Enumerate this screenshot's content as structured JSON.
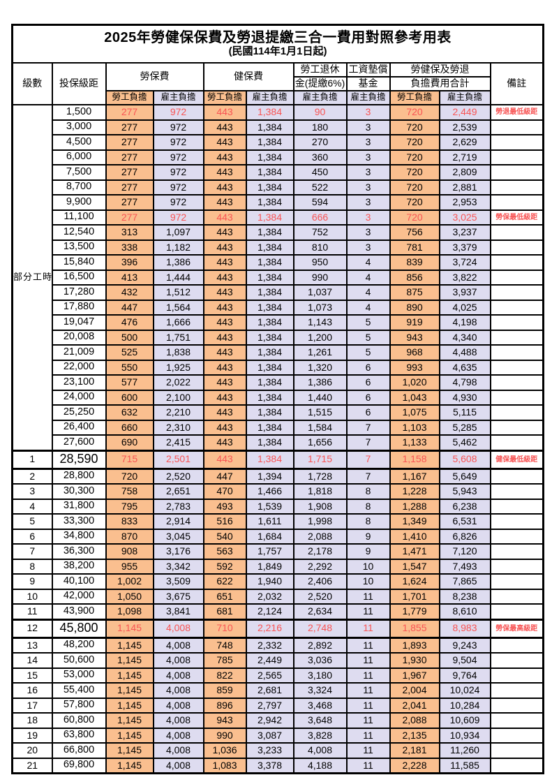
{
  "title": "2025年勞健保保費及勞退提繳三合一費用對照參考用表",
  "subtitle": "(民國114年1月1日起)",
  "header": {
    "level": "級數",
    "salary_bracket": "投保級距",
    "labor_insurance": "勞保費",
    "health_insurance": "健保費",
    "pension_line1": "勞工退休",
    "pension_line2": "金(提繳6%)",
    "wage_fund_line1": "工資墊償",
    "wage_fund_line2": "基金",
    "total_line1": "勞健保及勞退",
    "total_line2": "負擔費用合計",
    "remark": "備註",
    "employee_share": "勞工負擔",
    "employer_share": "雇主負擔"
  },
  "group_label": "部分工時",
  "group_rowspan": 23,
  "colors": {
    "employee_bg": "#FABF8F",
    "employer_bg": "#DEDCF0",
    "highlight_text": "#F85454",
    "border": "#000000"
  },
  "rows": [
    {
      "level": "",
      "salary": "1,500",
      "v": [
        "277",
        "972",
        "443",
        "1,384",
        "90",
        "3",
        "720",
        "2,449"
      ],
      "remark": "勞退最低級距",
      "red": true,
      "thick": false,
      "big": false
    },
    {
      "level": "",
      "salary": "3,000",
      "v": [
        "277",
        "972",
        "443",
        "1,384",
        "180",
        "3",
        "720",
        "2,539"
      ],
      "remark": "",
      "red": false,
      "thick": false,
      "big": false
    },
    {
      "level": "",
      "salary": "4,500",
      "v": [
        "277",
        "972",
        "443",
        "1,384",
        "270",
        "3",
        "720",
        "2,629"
      ],
      "remark": "",
      "red": false,
      "thick": false,
      "big": false
    },
    {
      "level": "",
      "salary": "6,000",
      "v": [
        "277",
        "972",
        "443",
        "1,384",
        "360",
        "3",
        "720",
        "2,719"
      ],
      "remark": "",
      "red": false,
      "thick": false,
      "big": false
    },
    {
      "level": "",
      "salary": "7,500",
      "v": [
        "277",
        "972",
        "443",
        "1,384",
        "450",
        "3",
        "720",
        "2,809"
      ],
      "remark": "",
      "red": false,
      "thick": false,
      "big": false
    },
    {
      "level": "",
      "salary": "8,700",
      "v": [
        "277",
        "972",
        "443",
        "1,384",
        "522",
        "3",
        "720",
        "2,881"
      ],
      "remark": "",
      "red": false,
      "thick": false,
      "big": false
    },
    {
      "level": "",
      "salary": "9,900",
      "v": [
        "277",
        "972",
        "443",
        "1,384",
        "594",
        "3",
        "720",
        "2,953"
      ],
      "remark": "",
      "red": false,
      "thick": false,
      "big": false
    },
    {
      "level": "",
      "salary": "11,100",
      "v": [
        "277",
        "972",
        "443",
        "1,384",
        "666",
        "3",
        "720",
        "3,025"
      ],
      "remark": "勞保最低級距",
      "red": true,
      "thick": false,
      "big": false
    },
    {
      "level": "",
      "salary": "12,540",
      "v": [
        "313",
        "1,097",
        "443",
        "1,384",
        "752",
        "3",
        "756",
        "3,237"
      ],
      "remark": "",
      "red": false,
      "thick": false,
      "big": false
    },
    {
      "level": "",
      "salary": "13,500",
      "v": [
        "338",
        "1,182",
        "443",
        "1,384",
        "810",
        "3",
        "781",
        "3,379"
      ],
      "remark": "",
      "red": false,
      "thick": false,
      "big": false
    },
    {
      "level": "",
      "salary": "15,840",
      "v": [
        "396",
        "1,386",
        "443",
        "1,384",
        "950",
        "4",
        "839",
        "3,724"
      ],
      "remark": "",
      "red": false,
      "thick": false,
      "big": false
    },
    {
      "level": "",
      "salary": "16,500",
      "v": [
        "413",
        "1,444",
        "443",
        "1,384",
        "990",
        "4",
        "856",
        "3,822"
      ],
      "remark": "",
      "red": false,
      "thick": false,
      "big": false
    },
    {
      "level": "",
      "salary": "17,280",
      "v": [
        "432",
        "1,512",
        "443",
        "1,384",
        "1,037",
        "4",
        "875",
        "3,937"
      ],
      "remark": "",
      "red": false,
      "thick": false,
      "big": false
    },
    {
      "level": "",
      "salary": "17,880",
      "v": [
        "447",
        "1,564",
        "443",
        "1,384",
        "1,073",
        "4",
        "890",
        "4,025"
      ],
      "remark": "",
      "red": false,
      "thick": false,
      "big": false
    },
    {
      "level": "",
      "salary": "19,047",
      "v": [
        "476",
        "1,666",
        "443",
        "1,384",
        "1,143",
        "5",
        "919",
        "4,198"
      ],
      "remark": "",
      "red": false,
      "thick": false,
      "big": false
    },
    {
      "level": "",
      "salary": "20,008",
      "v": [
        "500",
        "1,751",
        "443",
        "1,384",
        "1,200",
        "5",
        "943",
        "4,340"
      ],
      "remark": "",
      "red": false,
      "thick": false,
      "big": false
    },
    {
      "level": "",
      "salary": "21,009",
      "v": [
        "525",
        "1,838",
        "443",
        "1,384",
        "1,261",
        "5",
        "968",
        "4,488"
      ],
      "remark": "",
      "red": false,
      "thick": false,
      "big": false
    },
    {
      "level": "",
      "salary": "22,000",
      "v": [
        "550",
        "1,925",
        "443",
        "1,384",
        "1,320",
        "6",
        "993",
        "4,635"
      ],
      "remark": "",
      "red": false,
      "thick": false,
      "big": false
    },
    {
      "level": "",
      "salary": "23,100",
      "v": [
        "577",
        "2,022",
        "443",
        "1,384",
        "1,386",
        "6",
        "1,020",
        "4,798"
      ],
      "remark": "",
      "red": false,
      "thick": false,
      "big": false
    },
    {
      "level": "",
      "salary": "24,000",
      "v": [
        "600",
        "2,100",
        "443",
        "1,384",
        "1,440",
        "6",
        "1,043",
        "4,930"
      ],
      "remark": "",
      "red": false,
      "thick": false,
      "big": false
    },
    {
      "level": "",
      "salary": "25,250",
      "v": [
        "632",
        "2,210",
        "443",
        "1,384",
        "1,515",
        "6",
        "1,075",
        "5,115"
      ],
      "remark": "",
      "red": false,
      "thick": false,
      "big": false
    },
    {
      "level": "",
      "salary": "26,400",
      "v": [
        "660",
        "2,310",
        "443",
        "1,384",
        "1,584",
        "7",
        "1,103",
        "5,285"
      ],
      "remark": "",
      "red": false,
      "thick": false,
      "big": false
    },
    {
      "level": "",
      "salary": "27,600",
      "v": [
        "690",
        "2,415",
        "443",
        "1,384",
        "1,656",
        "7",
        "1,133",
        "5,462"
      ],
      "remark": "",
      "red": false,
      "thick": false,
      "big": false
    },
    {
      "level": "1",
      "salary": "28,590",
      "v": [
        "715",
        "2,501",
        "443",
        "1,384",
        "1,715",
        "7",
        "1,158",
        "5,608"
      ],
      "remark": "健保最低級距",
      "red": true,
      "thick": true,
      "big": true
    },
    {
      "level": "2",
      "salary": "28,800",
      "v": [
        "720",
        "2,520",
        "447",
        "1,394",
        "1,728",
        "7",
        "1,167",
        "5,649"
      ],
      "remark": "",
      "red": false,
      "thick": false,
      "big": false
    },
    {
      "level": "3",
      "salary": "30,300",
      "v": [
        "758",
        "2,651",
        "470",
        "1,466",
        "1,818",
        "8",
        "1,228",
        "5,943"
      ],
      "remark": "",
      "red": false,
      "thick": false,
      "big": false
    },
    {
      "level": "4",
      "salary": "31,800",
      "v": [
        "795",
        "2,783",
        "493",
        "1,539",
        "1,908",
        "8",
        "1,288",
        "6,238"
      ],
      "remark": "",
      "red": false,
      "thick": false,
      "big": false
    },
    {
      "level": "5",
      "salary": "33,300",
      "v": [
        "833",
        "2,914",
        "516",
        "1,611",
        "1,998",
        "8",
        "1,349",
        "6,531"
      ],
      "remark": "",
      "red": false,
      "thick": false,
      "big": false
    },
    {
      "level": "6",
      "salary": "34,800",
      "v": [
        "870",
        "3,045",
        "540",
        "1,684",
        "2,088",
        "9",
        "1,410",
        "6,826"
      ],
      "remark": "",
      "red": false,
      "thick": false,
      "big": false
    },
    {
      "level": "7",
      "salary": "36,300",
      "v": [
        "908",
        "3,176",
        "563",
        "1,757",
        "2,178",
        "9",
        "1,471",
        "7,120"
      ],
      "remark": "",
      "red": false,
      "thick": false,
      "big": false
    },
    {
      "level": "8",
      "salary": "38,200",
      "v": [
        "955",
        "3,342",
        "592",
        "1,849",
        "2,292",
        "10",
        "1,547",
        "7,493"
      ],
      "remark": "",
      "red": false,
      "thick": false,
      "big": false
    },
    {
      "level": "9",
      "salary": "40,100",
      "v": [
        "1,002",
        "3,509",
        "622",
        "1,940",
        "2,406",
        "10",
        "1,624",
        "7,865"
      ],
      "remark": "",
      "red": false,
      "thick": false,
      "big": false
    },
    {
      "level": "10",
      "salary": "42,000",
      "v": [
        "1,050",
        "3,675",
        "651",
        "2,032",
        "2,520",
        "11",
        "1,701",
        "8,238"
      ],
      "remark": "",
      "red": false,
      "thick": false,
      "big": false
    },
    {
      "level": "11",
      "salary": "43,900",
      "v": [
        "1,098",
        "3,841",
        "681",
        "2,124",
        "2,634",
        "11",
        "1,779",
        "8,610"
      ],
      "remark": "",
      "red": false,
      "thick": false,
      "big": false
    },
    {
      "level": "12",
      "salary": "45,800",
      "v": [
        "1,145",
        "4,008",
        "710",
        "2,216",
        "2,748",
        "11",
        "1,855",
        "8,983"
      ],
      "remark": "勞保最高級距",
      "red": true,
      "thick": true,
      "big": true
    },
    {
      "level": "13",
      "salary": "48,200",
      "v": [
        "1,145",
        "4,008",
        "748",
        "2,332",
        "2,892",
        "11",
        "1,893",
        "9,243"
      ],
      "remark": "",
      "red": false,
      "thick": false,
      "big": false
    },
    {
      "level": "14",
      "salary": "50,600",
      "v": [
        "1,145",
        "4,008",
        "785",
        "2,449",
        "3,036",
        "11",
        "1,930",
        "9,504"
      ],
      "remark": "",
      "red": false,
      "thick": false,
      "big": false
    },
    {
      "level": "15",
      "salary": "53,000",
      "v": [
        "1,145",
        "4,008",
        "822",
        "2,565",
        "3,180",
        "11",
        "1,967",
        "9,764"
      ],
      "remark": "",
      "red": false,
      "thick": false,
      "big": false
    },
    {
      "level": "16",
      "salary": "55,400",
      "v": [
        "1,145",
        "4,008",
        "859",
        "2,681",
        "3,324",
        "11",
        "2,004",
        "10,024"
      ],
      "remark": "",
      "red": false,
      "thick": false,
      "big": false
    },
    {
      "level": "17",
      "salary": "57,800",
      "v": [
        "1,145",
        "4,008",
        "896",
        "2,797",
        "3,468",
        "11",
        "2,041",
        "10,284"
      ],
      "remark": "",
      "red": false,
      "thick": false,
      "big": false
    },
    {
      "level": "18",
      "salary": "60,800",
      "v": [
        "1,145",
        "4,008",
        "943",
        "2,942",
        "3,648",
        "11",
        "2,088",
        "10,609"
      ],
      "remark": "",
      "red": false,
      "thick": false,
      "big": false
    },
    {
      "level": "19",
      "salary": "63,800",
      "v": [
        "1,145",
        "4,008",
        "990",
        "3,087",
        "3,828",
        "11",
        "2,135",
        "10,934"
      ],
      "remark": "",
      "red": false,
      "thick": false,
      "big": false
    },
    {
      "level": "20",
      "salary": "66,800",
      "v": [
        "1,145",
        "4,008",
        "1,036",
        "3,233",
        "4,008",
        "11",
        "2,181",
        "11,260"
      ],
      "remark": "",
      "red": false,
      "thick": false,
      "big": false
    },
    {
      "level": "21",
      "salary": "69,800",
      "v": [
        "1,145",
        "4,008",
        "1,083",
        "3,378",
        "4,188",
        "11",
        "2,228",
        "11,585"
      ],
      "remark": "",
      "red": false,
      "thick": false,
      "big": false
    }
  ]
}
